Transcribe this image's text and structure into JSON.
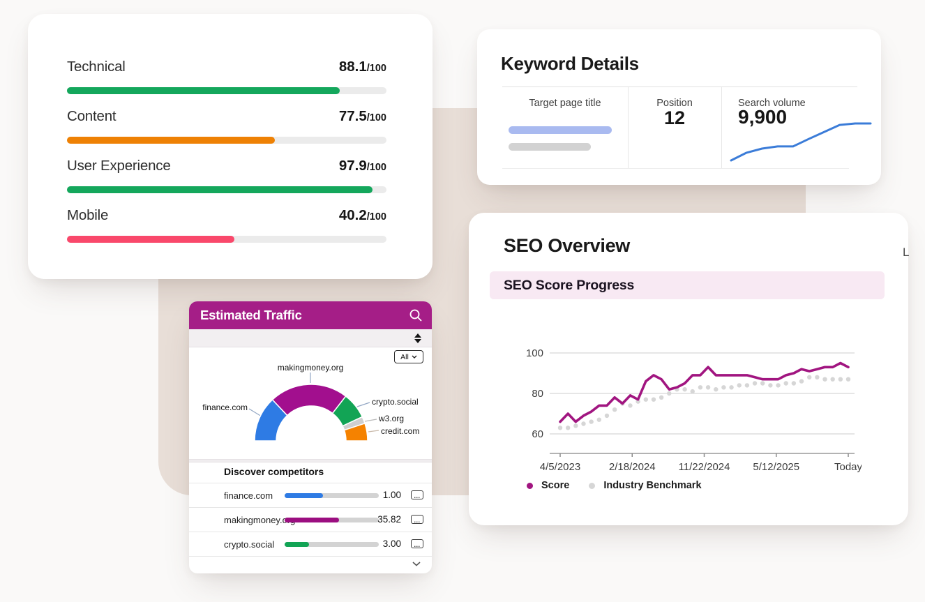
{
  "page": {
    "background_color": "#FAF9F8",
    "accent_shape_color": "#E8DED7",
    "stray_letter": "L"
  },
  "icons": {
    "search": "magnifier",
    "sort": "up-down-arrows",
    "more": "...",
    "chevron_down": "chevron-down"
  },
  "scorecard": {
    "rows": [
      {
        "label": "Technical",
        "value": "88.1",
        "suffix": "/100",
        "fill_pct": 85.4,
        "color": "#14A75C"
      },
      {
        "label": "Content",
        "value": "77.5",
        "suffix": "/100",
        "fill_pct": 65.1,
        "color": "#EE8104"
      },
      {
        "label": "User Experience",
        "value": "97.9",
        "suffix": "/100",
        "fill_pct": 95.6,
        "color": "#14A75C"
      },
      {
        "label": "Mobile",
        "value": "40.2",
        "suffix": "/100",
        "fill_pct": 52.4,
        "color": "#F9486B"
      }
    ]
  },
  "keyword_details": {
    "title": "Keyword Details",
    "columns": [
      {
        "header": "Target page title"
      },
      {
        "header": "Position",
        "value": "12"
      },
      {
        "header": "Search volume",
        "value": "9,900"
      }
    ]
  },
  "estimated_traffic": {
    "title": "Estimated Traffic",
    "header_color": "#A51E87",
    "filter_value": "All",
    "section_title": "Discover competitors",
    "competitors": [
      {
        "name": "finance.com",
        "value": "1.00",
        "fill_pct": 41,
        "color": "#2E7BE4"
      },
      {
        "name": "makingmoney.org",
        "value": "35.82",
        "fill_pct": 58,
        "color": "#9B0E80"
      },
      {
        "name": "crypto.social",
        "value": "3.00",
        "fill_pct": 26,
        "color": "#12A455"
      }
    ]
  },
  "seo_overview": {
    "title": "SEO Overview",
    "section_title": "SEO Score Progress"
  },
  "chart_data": [
    {
      "id": "traffic-share-gauge",
      "type": "pie",
      "variant": "half-donut",
      "title": "Estimated Traffic",
      "segments": [
        {
          "label": "finance.com",
          "pct": 26,
          "color": "#2E7BE4"
        },
        {
          "label": "makingmoney.org",
          "pct": 45,
          "color": "#A20F8E"
        },
        {
          "label": "crypto.social",
          "pct": 15,
          "color": "#12A455"
        },
        {
          "label": "w3.org",
          "pct": 4,
          "color": "#CFCFCF"
        },
        {
          "label": "credit.com",
          "pct": 10,
          "color": "#F58200"
        }
      ]
    },
    {
      "id": "seo-score-progress",
      "type": "line",
      "title": "SEO Score Progress",
      "x_tick_labels": [
        "4/5/2023",
        "2/18/2024",
        "11/22/2024",
        "5/12/2025",
        "Today"
      ],
      "y_ticks": [
        100,
        80,
        60
      ],
      "ylim": [
        55,
        103
      ],
      "grid": true,
      "legend_position": "bottom",
      "series": [
        {
          "name": "Score",
          "color": "#A11580",
          "style": "solid",
          "values": [
            66,
            70,
            66,
            69,
            71,
            74,
            74,
            78,
            75,
            79,
            77,
            86,
            89,
            87,
            82,
            83,
            85,
            89,
            89,
            93,
            89,
            89,
            89,
            89,
            89,
            88,
            87,
            87,
            87,
            89,
            90,
            92,
            91,
            92,
            93,
            93,
            95,
            93
          ]
        },
        {
          "name": "Industry Benchmark",
          "color": "#D6D6D6",
          "style": "dotted",
          "values": [
            63,
            63,
            64,
            65,
            66,
            67,
            69,
            72,
            75,
            74,
            76,
            77,
            77,
            78,
            80,
            82,
            82,
            81,
            83,
            83,
            82,
            83,
            83,
            84,
            84,
            85,
            85,
            84,
            84,
            85,
            85,
            86,
            88,
            88,
            87,
            87,
            87,
            87
          ]
        }
      ]
    },
    {
      "id": "search-volume-trend",
      "type": "line",
      "title": "Search volume",
      "current_value": "9,900",
      "color": "#3B7CD8",
      "values": [
        0,
        21,
        32,
        38,
        38,
        58,
        77,
        96,
        100,
        100
      ]
    }
  ]
}
